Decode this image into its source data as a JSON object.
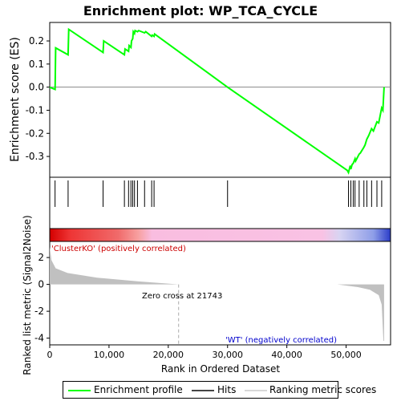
{
  "chart_data": {
    "type": "line",
    "title": "Enrichment plot: WP_TCA_CYCLE",
    "es_panel": {
      "ylabel": "Enrichment score (ES)",
      "ylim": [
        -0.39,
        0.28
      ],
      "yticks": [
        -0.3,
        -0.2,
        -0.1,
        0.0,
        0.1,
        0.2
      ],
      "ytick_labels": [
        "-0.3",
        "-0.2",
        "-0.1",
        "0.0",
        "0.1",
        "0.2"
      ],
      "series": [
        {
          "name": "Enrichment profile",
          "color": "#00ff00",
          "x": [
            0,
            900,
            1000,
            3100,
            3200,
            9000,
            9100,
            12600,
            12700,
            13300,
            13400,
            13700,
            13800,
            14000,
            14100,
            14300,
            14400,
            14800,
            15000,
            16000,
            16200,
            17200,
            17300,
            17600,
            17700,
            30000,
            50200,
            50400,
            50700,
            50800,
            51000,
            51200,
            51500,
            51600,
            52200,
            52400,
            53000,
            53200,
            53500,
            53800,
            54300,
            54600,
            55200,
            55500,
            56000,
            56200,
            56400
          ],
          "y": [
            0.0,
            -0.01,
            0.17,
            0.14,
            0.25,
            0.15,
            0.2,
            0.14,
            0.165,
            0.155,
            0.18,
            0.172,
            0.2,
            0.21,
            0.24,
            0.232,
            0.245,
            0.24,
            0.245,
            0.235,
            0.24,
            0.22,
            0.225,
            0.22,
            0.23,
            0.0,
            -0.36,
            -0.37,
            -0.34,
            -0.355,
            -0.335,
            -0.33,
            -0.31,
            -0.32,
            -0.29,
            -0.285,
            -0.26,
            -0.25,
            -0.225,
            -0.21,
            -0.18,
            -0.19,
            -0.15,
            -0.155,
            -0.09,
            -0.1,
            0.0
          ]
        }
      ]
    },
    "hits": [
      900,
      3100,
      9000,
      12600,
      13300,
      13700,
      14000,
      14300,
      14800,
      16000,
      17200,
      17600,
      30000,
      50400,
      50800,
      51200,
      51500,
      52200,
      53000,
      53500,
      54300,
      55200,
      56000
    ],
    "ranking_panel": {
      "ylabel": "Ranked list metric (Signal2Noise)",
      "ylim": [
        -4.5,
        3.2
      ],
      "yticks": [
        -4,
        -2,
        0,
        2
      ],
      "ytick_labels": [
        "-4",
        "-2",
        "0",
        "2"
      ],
      "metric_profile": {
        "name": "Ranking metric scores",
        "color": "#c0c0c0",
        "x": [
          0,
          300,
          1000,
          3000,
          8000,
          15000,
          21743,
          48500,
          52000,
          54000,
          55500,
          56000,
          56300,
          56400
        ],
        "y": [
          2.8,
          1.8,
          1.2,
          0.85,
          0.5,
          0.22,
          0.0,
          0.0,
          -0.2,
          -0.4,
          -0.8,
          -1.5,
          -4.2,
          -4.2
        ]
      },
      "positive_label": "'ClusterKO' (positively correlated)",
      "negative_label": "'WT' (negatively correlated)",
      "zero_cross_label": "Zero cross at 21743",
      "zero_cross": 21743,
      "positive_color": "#cc0000",
      "negative_color": "#0000cc"
    },
    "xaxis": {
      "xlabel": "Rank in Ordered Dataset",
      "xlim": [
        0,
        57500
      ],
      "xticks": [
        0,
        10000,
        20000,
        30000,
        40000,
        50000
      ],
      "xtick_labels": [
        "0",
        "10,000",
        "20,000",
        "30,000",
        "40,000",
        "50,000"
      ]
    },
    "legend": {
      "placement": "bottom",
      "items": [
        "Enrichment profile",
        "Hits",
        "Ranking metric scores"
      ]
    }
  }
}
